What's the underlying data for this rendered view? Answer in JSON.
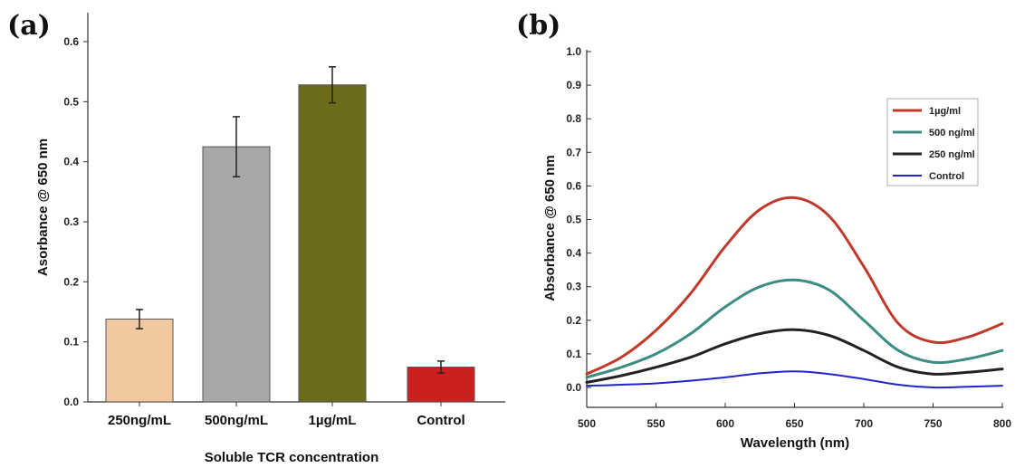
{
  "chart_data": [
    {
      "panel": "(a)",
      "type": "bar",
      "xlabel": "Soluble TCR concentration",
      "ylabel": "Asorbance @ 650 nm",
      "ylim": [
        0,
        0.6
      ],
      "yticks": [
        "0.0",
        "0.1",
        "0.2",
        "0.3",
        "0.4",
        "0.5",
        "0.6"
      ],
      "categories": [
        "250ng/mL",
        "500ng/mL",
        "1µg/mL",
        "Control"
      ],
      "values": [
        0.138,
        0.425,
        0.528,
        0.058
      ],
      "errors": [
        0.016,
        0.05,
        0.03,
        0.01
      ],
      "colors": [
        "#f2c8a0",
        "#a8a8a8",
        "#6b6b1a",
        "#cc1f1f"
      ]
    },
    {
      "panel": "(b)",
      "type": "line",
      "xlabel": "Wavelength (nm)",
      "ylabel": "Absorbance @ 650 nm",
      "xlim": [
        500,
        800
      ],
      "ylim": [
        -0.05,
        1.0
      ],
      "xticks": [
        "500",
        "550",
        "600",
        "650",
        "700",
        "750",
        "800"
      ],
      "yticks": [
        "0.0",
        "0.1",
        "0.2",
        "0.3",
        "0.4",
        "0.5",
        "0.6",
        "0.7",
        "0.8",
        "0.9",
        "1.0"
      ],
      "legend_position": "top-right",
      "x": [
        500,
        525,
        550,
        575,
        600,
        625,
        650,
        675,
        700,
        725,
        750,
        775,
        800
      ],
      "series": [
        {
          "name": "1µg/ml",
          "color": "#c0392b",
          "values": [
            0.04,
            0.09,
            0.17,
            0.28,
            0.42,
            0.53,
            0.565,
            0.51,
            0.36,
            0.19,
            0.135,
            0.15,
            0.19
          ]
        },
        {
          "name": "500 ng/ml",
          "color": "#3b8c82",
          "values": [
            0.03,
            0.06,
            0.1,
            0.16,
            0.24,
            0.3,
            0.32,
            0.29,
            0.2,
            0.11,
            0.075,
            0.085,
            0.11
          ]
        },
        {
          "name": "250 ng/ml",
          "color": "#222222",
          "values": [
            0.015,
            0.035,
            0.06,
            0.09,
            0.13,
            0.16,
            0.172,
            0.155,
            0.11,
            0.06,
            0.04,
            0.045,
            0.055
          ]
        },
        {
          "name": "Control",
          "color": "#2424cc",
          "values": [
            0.005,
            0.008,
            0.012,
            0.02,
            0.03,
            0.042,
            0.048,
            0.04,
            0.025,
            0.008,
            0.0,
            0.002,
            0.005
          ]
        }
      ]
    }
  ]
}
